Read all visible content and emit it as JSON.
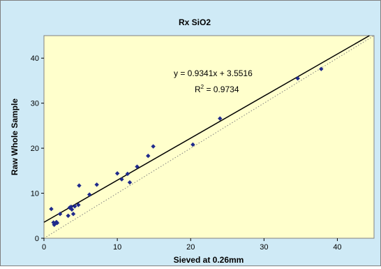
{
  "chart_data": {
    "type": "scatter",
    "title": "Rx SiO2",
    "xlabel": "Sieved at 0.26mm",
    "ylabel": "Raw Whole Sample",
    "xlim": [
      0,
      45
    ],
    "ylim": [
      0,
      45
    ],
    "xticks": [
      0,
      10,
      20,
      30,
      40
    ],
    "yticks": [
      0,
      10,
      20,
      30,
      40
    ],
    "grid": {
      "x": false,
      "y": false
    },
    "colors": {
      "chart_background": "#cfeaf6",
      "plot_background": "#ffffcc",
      "points": "#1f2a8c",
      "trendline": "#000000",
      "reference_line": "#7f7f7f"
    },
    "series": [
      {
        "x": [
          1.0,
          1.3,
          1.4,
          1.5,
          1.7,
          1.8,
          2.2,
          3.3,
          3.5,
          3.7,
          3.8,
          4.0,
          4.2,
          4.7,
          4.8,
          6.2,
          7.2,
          10.0,
          10.6,
          11.4,
          11.7,
          12.7,
          14.2,
          14.9,
          20.3,
          24.0,
          34.6,
          37.8
        ],
        "y": [
          6.5,
          3.5,
          3.0,
          3.2,
          3.6,
          3.4,
          5.4,
          5.0,
          6.8,
          7.0,
          6.4,
          5.4,
          7.1,
          7.4,
          11.7,
          9.7,
          11.9,
          14.4,
          13.1,
          14.3,
          12.4,
          15.9,
          18.3,
          20.4,
          20.8,
          26.6,
          35.5,
          37.6
        ]
      }
    ],
    "trendline": {
      "slope": 0.9341,
      "intercept": 3.5516
    },
    "reference_line": {
      "slope": 1,
      "intercept": 0
    },
    "annotations": {
      "equation": "y = 0.9341x + 3.5516",
      "r2_prefix": "R",
      "r2_superscript": "2",
      "r2_value": " = 0.9734"
    }
  }
}
